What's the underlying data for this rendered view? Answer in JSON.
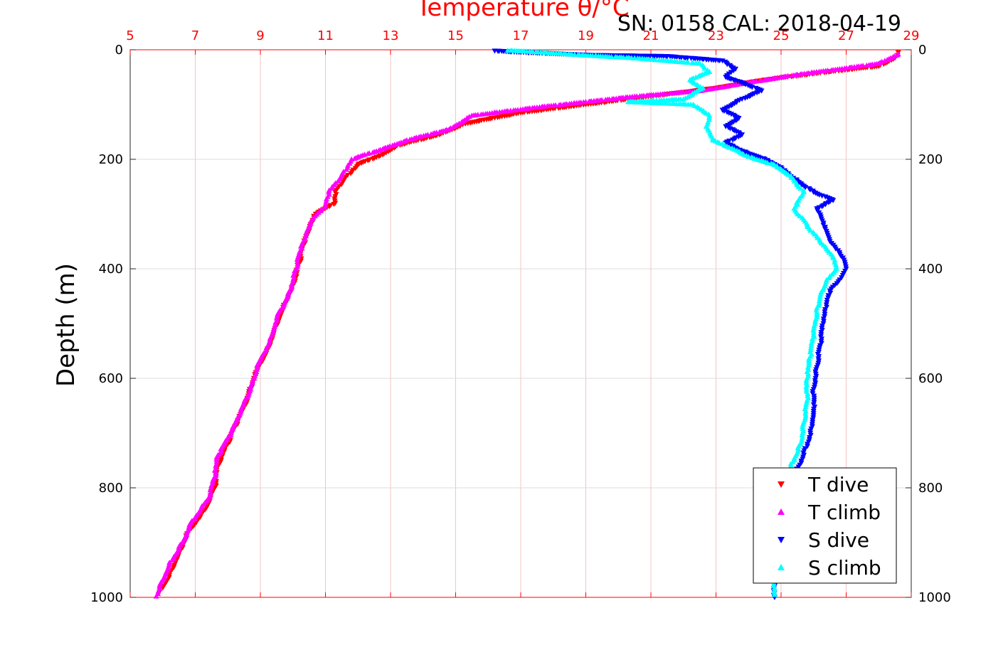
{
  "chart_data": {
    "type": "scatter",
    "title": "Temperature θ/°C",
    "title_color": "#ff0000",
    "annotation": "SN: 0158  CAL: 2018-04-19",
    "ylabel": "Depth (m)",
    "xlim": [
      5,
      29
    ],
    "ylim": [
      0,
      1000
    ],
    "y_inverted": true,
    "x_axis_position": "top",
    "x_ticks": [
      "5",
      "7",
      "9",
      "11",
      "13",
      "15",
      "17",
      "19",
      "21",
      "23",
      "25",
      "27",
      "29"
    ],
    "y_ticks": [
      "0",
      "200",
      "400",
      "600",
      "800",
      "1000"
    ],
    "y_ticks_right": [
      "0",
      "200",
      "400",
      "600",
      "800",
      "1000"
    ],
    "grid": true,
    "legend_position": "bottom-right",
    "series": [
      {
        "name": "T dive",
        "color": "#ff0000",
        "marker": "triangle-down",
        "points": [
          [
            28.6,
            5
          ],
          [
            28.5,
            15
          ],
          [
            28.0,
            30
          ],
          [
            26.5,
            40
          ],
          [
            24.5,
            55
          ],
          [
            23.0,
            70
          ],
          [
            21.0,
            85
          ],
          [
            19.0,
            100
          ],
          [
            17.0,
            115
          ],
          [
            15.3,
            135
          ],
          [
            14.5,
            155
          ],
          [
            13.2,
            175
          ],
          [
            12.8,
            190
          ],
          [
            12.0,
            210
          ],
          [
            11.6,
            235
          ],
          [
            11.3,
            260
          ],
          [
            11.3,
            280
          ],
          [
            10.7,
            300
          ],
          [
            10.5,
            330
          ],
          [
            10.3,
            360
          ],
          [
            10.2,
            390
          ],
          [
            10.0,
            430
          ],
          [
            9.7,
            470
          ],
          [
            9.4,
            520
          ],
          [
            9.2,
            550
          ],
          [
            8.8,
            600
          ],
          [
            8.6,
            640
          ],
          [
            8.3,
            680
          ],
          [
            8.0,
            720
          ],
          [
            7.7,
            760
          ],
          [
            7.6,
            800
          ],
          [
            7.3,
            840
          ],
          [
            6.8,
            880
          ],
          [
            6.5,
            920
          ],
          [
            6.2,
            960
          ],
          [
            5.9,
            990
          ]
        ]
      },
      {
        "name": "T climb",
        "color": "#ff00ff",
        "marker": "triangle-up",
        "points": [
          [
            28.6,
            8
          ],
          [
            28.0,
            25
          ],
          [
            26.8,
            35
          ],
          [
            25.5,
            45
          ],
          [
            24.0,
            60
          ],
          [
            22.5,
            75
          ],
          [
            20.5,
            85
          ],
          [
            19.0,
            95
          ],
          [
            17.5,
            105
          ],
          [
            15.5,
            120
          ],
          [
            14.8,
            145
          ],
          [
            13.5,
            165
          ],
          [
            12.8,
            180
          ],
          [
            11.8,
            200
          ],
          [
            11.5,
            230
          ],
          [
            11.1,
            260
          ],
          [
            11.0,
            285
          ],
          [
            10.6,
            310
          ],
          [
            10.4,
            340
          ],
          [
            10.2,
            370
          ],
          [
            10.1,
            400
          ],
          [
            9.9,
            440
          ],
          [
            9.5,
            490
          ],
          [
            9.3,
            530
          ],
          [
            8.9,
            580
          ],
          [
            8.7,
            620
          ],
          [
            8.4,
            660
          ],
          [
            8.1,
            700
          ],
          [
            7.7,
            740
          ],
          [
            7.6,
            780
          ],
          [
            7.4,
            820
          ],
          [
            6.9,
            860
          ],
          [
            6.6,
            900
          ],
          [
            6.2,
            940
          ],
          [
            5.9,
            980
          ],
          [
            5.8,
            998
          ]
        ]
      },
      {
        "name": "S dive",
        "color": "#0000ff",
        "marker": "triangle-down",
        "points": [
          [
            16.2,
            2
          ],
          [
            16.8,
            4
          ],
          [
            19.2,
            10
          ],
          [
            21.5,
            12
          ],
          [
            23.2,
            20
          ],
          [
            23.6,
            35
          ],
          [
            23.3,
            50
          ],
          [
            23.8,
            60
          ],
          [
            24.4,
            75
          ],
          [
            23.8,
            90
          ],
          [
            23.2,
            110
          ],
          [
            23.7,
            125
          ],
          [
            23.3,
            140
          ],
          [
            23.8,
            155
          ],
          [
            23.3,
            170
          ],
          [
            23.8,
            185
          ],
          [
            24.5,
            200
          ],
          [
            25.0,
            215
          ],
          [
            25.5,
            240
          ],
          [
            26.0,
            260
          ],
          [
            26.6,
            275
          ],
          [
            26.1,
            290
          ],
          [
            26.3,
            320
          ],
          [
            26.5,
            350
          ],
          [
            26.9,
            380
          ],
          [
            27.0,
            400
          ],
          [
            26.8,
            420
          ],
          [
            26.5,
            440
          ],
          [
            26.4,
            470
          ],
          [
            26.3,
            500
          ],
          [
            26.2,
            540
          ],
          [
            26.1,
            580
          ],
          [
            26.0,
            620
          ],
          [
            26.0,
            660
          ],
          [
            25.9,
            700
          ],
          [
            25.7,
            740
          ],
          [
            25.4,
            780
          ],
          [
            25.2,
            820
          ],
          [
            25.0,
            870
          ],
          [
            24.9,
            920
          ],
          [
            24.8,
            980
          ],
          [
            24.8,
            1000
          ]
        ]
      },
      {
        "name": "S climb",
        "color": "#00ffff",
        "marker": "triangle-up",
        "points": [
          [
            16.6,
            1
          ],
          [
            17.8,
            5
          ],
          [
            19.0,
            10
          ],
          [
            20.5,
            15
          ],
          [
            22.5,
            25
          ],
          [
            22.8,
            40
          ],
          [
            22.2,
            55
          ],
          [
            22.6,
            70
          ],
          [
            22.0,
            90
          ],
          [
            20.3,
            95
          ],
          [
            22.3,
            100
          ],
          [
            22.8,
            120
          ],
          [
            22.7,
            140
          ],
          [
            22.9,
            165
          ],
          [
            23.5,
            180
          ],
          [
            24.0,
            195
          ],
          [
            24.8,
            210
          ],
          [
            25.3,
            230
          ],
          [
            25.7,
            260
          ],
          [
            25.4,
            290
          ],
          [
            25.8,
            320
          ],
          [
            26.2,
            350
          ],
          [
            26.6,
            380
          ],
          [
            26.7,
            400
          ],
          [
            26.4,
            420
          ],
          [
            26.2,
            450
          ],
          [
            26.1,
            480
          ],
          [
            26.0,
            520
          ],
          [
            25.9,
            560
          ],
          [
            25.8,
            600
          ],
          [
            25.8,
            640
          ],
          [
            25.7,
            680
          ],
          [
            25.6,
            720
          ],
          [
            25.3,
            760
          ],
          [
            25.1,
            800
          ],
          [
            25.0,
            850
          ],
          [
            24.9,
            900
          ],
          [
            24.8,
            950
          ],
          [
            24.8,
            995
          ]
        ]
      }
    ]
  }
}
